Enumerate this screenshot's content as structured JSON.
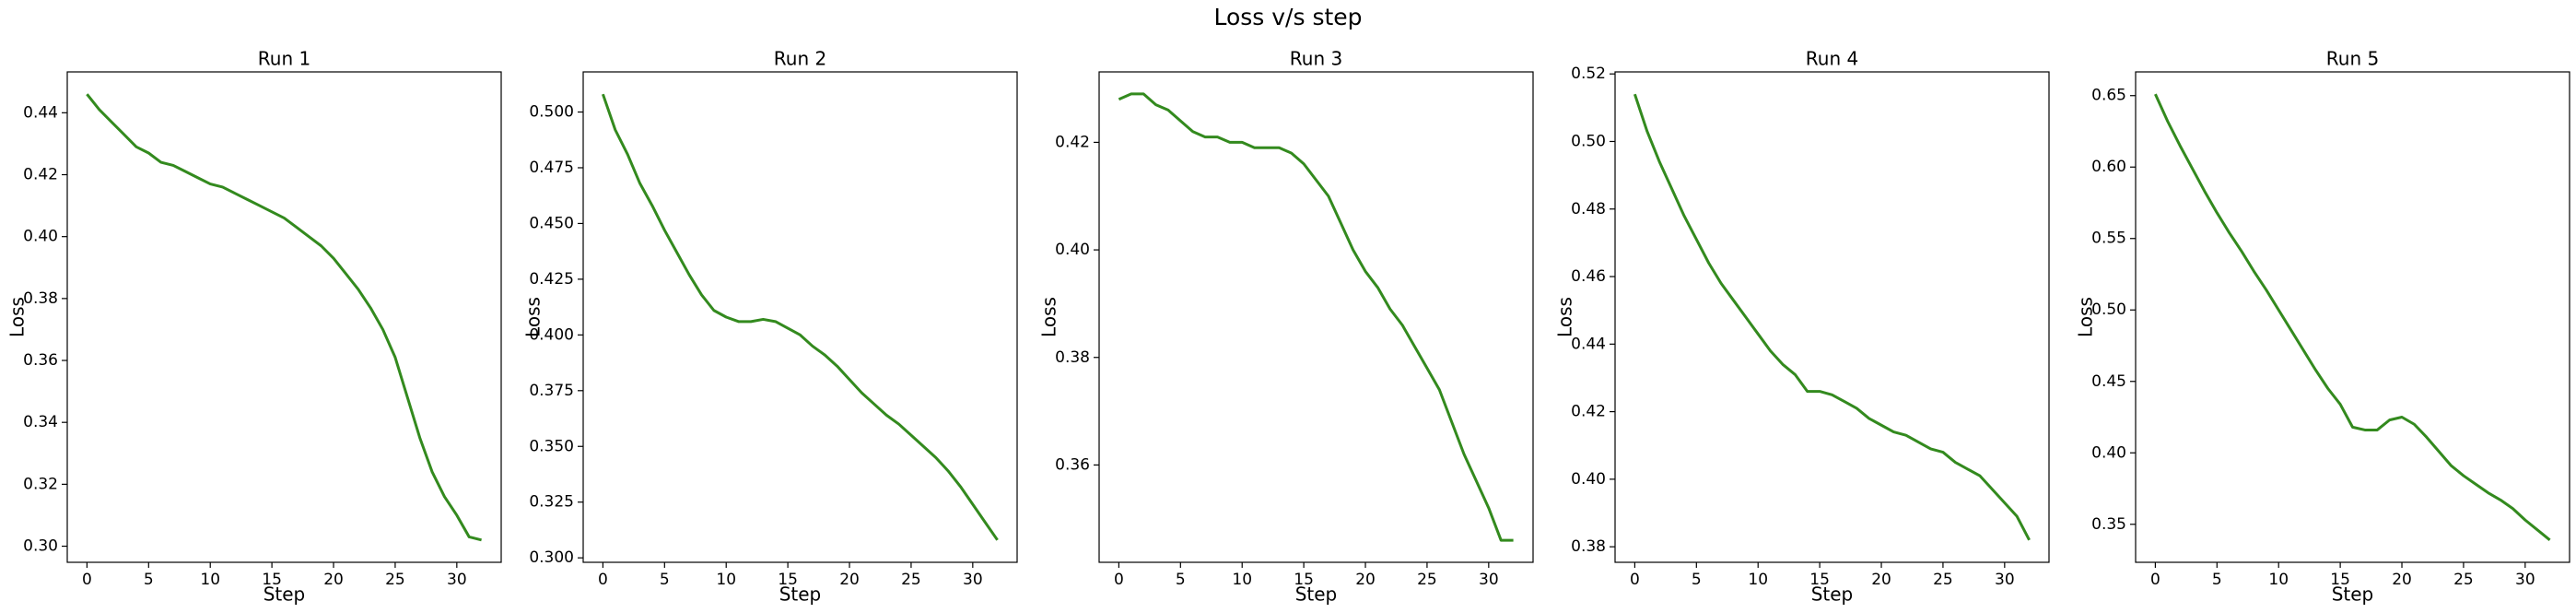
{
  "figure_title": "Loss v/s step",
  "chart_data": [
    {
      "type": "line",
      "title": "Run 1",
      "xlabel": "Step",
      "ylabel": "Loss",
      "color": "#338a1e",
      "x": [
        0,
        1,
        2,
        3,
        4,
        5,
        6,
        7,
        8,
        9,
        10,
        11,
        12,
        13,
        14,
        15,
        16,
        17,
        18,
        19,
        20,
        21,
        22,
        23,
        24,
        25,
        26,
        27,
        28,
        29,
        30,
        31,
        32
      ],
      "values": [
        0.446,
        0.441,
        0.437,
        0.433,
        0.429,
        0.427,
        0.424,
        0.423,
        0.421,
        0.419,
        0.417,
        0.416,
        0.414,
        0.412,
        0.41,
        0.408,
        0.406,
        0.403,
        0.4,
        0.397,
        0.393,
        0.388,
        0.383,
        0.377,
        0.37,
        0.361,
        0.348,
        0.335,
        0.324,
        0.316,
        0.31,
        0.303,
        0.302
      ],
      "xlim": [
        -1.6,
        33.6
      ],
      "xticks": [
        0,
        5,
        10,
        15,
        20,
        25,
        30
      ],
      "ylim": [
        0.2948,
        0.4532
      ],
      "yticks": [
        {
          "value": 0.3,
          "label": "0.30"
        },
        0.32,
        0.34,
        0.36,
        0.38,
        {
          "value": 0.4,
          "label": "0.40"
        },
        0.42,
        0.44
      ]
    },
    {
      "type": "line",
      "title": "Run 2",
      "xlabel": "Step",
      "ylabel": "Loss",
      "color": "#338a1e",
      "x": [
        0,
        1,
        2,
        3,
        4,
        5,
        6,
        7,
        8,
        9,
        10,
        11,
        12,
        13,
        14,
        15,
        16,
        17,
        18,
        19,
        20,
        21,
        22,
        23,
        24,
        25,
        26,
        27,
        28,
        29,
        30,
        31,
        32
      ],
      "values": [
        0.508,
        0.492,
        0.481,
        0.468,
        0.458,
        0.447,
        0.437,
        0.427,
        0.418,
        0.411,
        0.408,
        0.406,
        0.406,
        0.407,
        0.406,
        0.403,
        0.4,
        0.395,
        0.391,
        0.386,
        0.38,
        0.374,
        0.369,
        0.364,
        0.36,
        0.355,
        0.35,
        0.345,
        0.339,
        0.332,
        0.324,
        0.316,
        0.308
      ],
      "xlim": [
        -1.6,
        33.6
      ],
      "xticks": [
        0,
        5,
        10,
        15,
        20,
        25,
        30
      ],
      "ylim": [
        0.298,
        0.518
      ],
      "yticks": [
        {
          "value": 0.3,
          "label": "0.300"
        },
        0.325,
        {
          "value": 0.35,
          "label": "0.350"
        },
        0.375,
        {
          "value": 0.4,
          "label": "0.400"
        },
        0.425,
        {
          "value": 0.45,
          "label": "0.450"
        },
        0.475,
        {
          "value": 0.5,
          "label": "0.500"
        }
      ]
    },
    {
      "type": "line",
      "title": "Run 3",
      "xlabel": "Step",
      "ylabel": "Loss",
      "color": "#338a1e",
      "x": [
        0,
        1,
        2,
        3,
        4,
        5,
        6,
        7,
        8,
        9,
        10,
        11,
        12,
        13,
        14,
        15,
        16,
        17,
        18,
        19,
        20,
        21,
        22,
        23,
        24,
        25,
        26,
        27,
        28,
        29,
        30,
        31,
        32
      ],
      "values": [
        0.428,
        0.429,
        0.429,
        0.427,
        0.426,
        0.424,
        0.422,
        0.421,
        0.421,
        0.42,
        0.42,
        0.419,
        0.419,
        0.419,
        0.418,
        0.416,
        0.413,
        0.41,
        0.405,
        0.4,
        0.396,
        0.393,
        0.389,
        0.386,
        0.382,
        0.378,
        0.374,
        0.368,
        0.362,
        0.357,
        0.352,
        0.346,
        0.346
      ],
      "xlim": [
        -1.6,
        33.6
      ],
      "xticks": [
        0,
        5,
        10,
        15,
        20,
        25,
        30
      ],
      "ylim": [
        0.3419,
        0.4331
      ],
      "yticks": [
        0.36,
        0.38,
        {
          "value": 0.4,
          "label": "0.40"
        },
        0.42
      ]
    },
    {
      "type": "line",
      "title": "Run 4",
      "xlabel": "Step",
      "ylabel": "Loss",
      "color": "#338a1e",
      "x": [
        0,
        1,
        2,
        3,
        4,
        5,
        6,
        7,
        8,
        9,
        10,
        11,
        12,
        13,
        14,
        15,
        16,
        17,
        18,
        19,
        20,
        21,
        22,
        23,
        24,
        25,
        26,
        27,
        28,
        29,
        30,
        31,
        32
      ],
      "values": [
        0.514,
        0.503,
        0.494,
        0.486,
        0.478,
        0.471,
        0.464,
        0.458,
        0.453,
        0.448,
        0.443,
        0.438,
        0.434,
        0.431,
        0.426,
        0.426,
        0.425,
        0.423,
        0.421,
        0.418,
        0.416,
        0.414,
        0.413,
        0.411,
        0.409,
        0.408,
        0.405,
        0.403,
        0.401,
        0.397,
        0.393,
        0.389,
        0.382
      ],
      "xlim": [
        -1.6,
        33.6
      ],
      "xticks": [
        0,
        5,
        10,
        15,
        20,
        25,
        30
      ],
      "ylim": [
        0.3754,
        0.5206
      ],
      "yticks": [
        0.38,
        {
          "value": 0.4,
          "label": "0.40"
        },
        0.42,
        0.44,
        0.46,
        0.48,
        {
          "value": 0.5,
          "label": "0.50"
        },
        0.52
      ]
    },
    {
      "type": "line",
      "title": "Run 5",
      "xlabel": "Step",
      "ylabel": "Loss",
      "color": "#338a1e",
      "x": [
        0,
        1,
        2,
        3,
        4,
        5,
        6,
        7,
        8,
        9,
        10,
        11,
        12,
        13,
        14,
        15,
        16,
        17,
        18,
        19,
        20,
        21,
        22,
        23,
        24,
        25,
        26,
        27,
        28,
        29,
        30,
        31,
        32
      ],
      "values": [
        0.651,
        0.632,
        0.615,
        0.599,
        0.583,
        0.568,
        0.554,
        0.541,
        0.527,
        0.514,
        0.5,
        0.486,
        0.472,
        0.458,
        0.445,
        0.434,
        0.418,
        0.416,
        0.416,
        0.423,
        0.425,
        0.42,
        0.411,
        0.401,
        0.391,
        0.384,
        0.378,
        0.372,
        0.367,
        0.361,
        0.353,
        0.346,
        0.339
      ],
      "xlim": [
        -1.6,
        33.6
      ],
      "xticks": [
        0,
        5,
        10,
        15,
        20,
        25,
        30
      ],
      "ylim": [
        0.3234,
        0.6666
      ],
      "yticks": [
        0.35,
        {
          "value": 0.4,
          "label": "0.40"
        },
        0.45,
        {
          "value": 0.5,
          "label": "0.50"
        },
        0.55,
        {
          "value": 0.6,
          "label": "0.60"
        },
        0.65
      ]
    }
  ]
}
